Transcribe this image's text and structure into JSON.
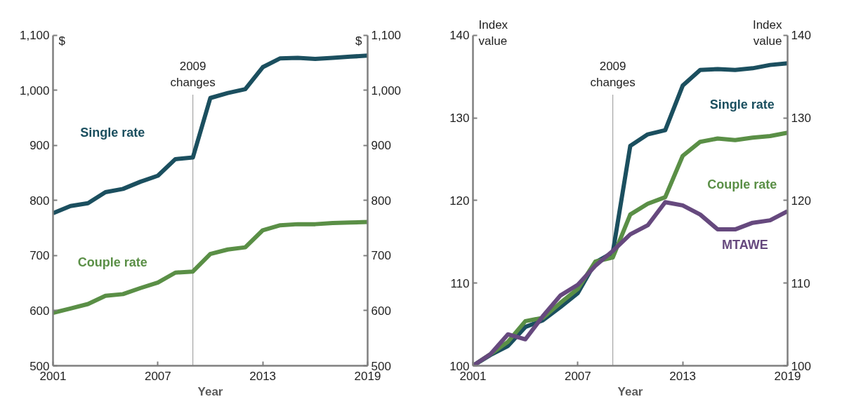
{
  "chart_data": [
    {
      "type": "line",
      "xlabel": "Year",
      "ylabel": "$",
      "y2label": "$",
      "x": [
        2001,
        2002,
        2003,
        2004,
        2005,
        2006,
        2007,
        2008,
        2009,
        2010,
        2011,
        2012,
        2013,
        2014,
        2015,
        2016,
        2017,
        2018,
        2019
      ],
      "series": [
        {
          "name": "Single rate",
          "color": "#1b4f5f",
          "values": [
            777,
            790,
            795,
            815,
            821,
            834,
            845,
            875,
            878,
            986,
            995,
            1002,
            1042,
            1058,
            1059,
            1057,
            1059,
            1061,
            1063
          ]
        },
        {
          "name": "Couple rate",
          "color": "#5a8f46",
          "values": [
            596,
            604,
            612,
            627,
            630,
            641,
            651,
            669,
            671,
            703,
            711,
            715,
            746,
            755,
            757,
            757,
            759,
            760,
            761
          ]
        }
      ],
      "xlim": [
        2001,
        2019
      ],
      "xticks": [
        2001,
        2007,
        2013,
        2019
      ],
      "ylim": [
        500,
        1100
      ],
      "yticks": [
        500,
        600,
        700,
        800,
        900,
        {
          "value": 1000,
          "label": "1,000"
        },
        {
          "value": 1100,
          "label": "1,100"
        }
      ],
      "y2lim": [
        500,
        1100
      ],
      "y2ticks": [
        500,
        600,
        700,
        800,
        900,
        {
          "value": 1000,
          "label": "1,000"
        },
        {
          "value": 1100,
          "label": "1,100"
        }
      ],
      "ref_lines": [
        {
          "axis": "x",
          "value": 2009,
          "label": "2009\nchanges",
          "color": "#a6a6a6"
        }
      ],
      "line_style": "solid"
    },
    {
      "type": "line",
      "xlabel": "Year",
      "ylabel": "Index\nvalue",
      "y2label": "Index\nvalue",
      "x": [
        2001,
        2002,
        2003,
        2004,
        2005,
        2006,
        2007,
        2008,
        2009,
        2010,
        2011,
        2012,
        2013,
        2014,
        2015,
        2016,
        2017,
        2018,
        2019
      ],
      "series": [
        {
          "name": "Single rate",
          "color": "#1b4f5f",
          "values": [
            100,
            101.3,
            102.4,
            104.7,
            105.5,
            107.1,
            108.8,
            112.5,
            113.7,
            126.6,
            128.0,
            128.5,
            133.9,
            135.8,
            135.9,
            135.8,
            136.0,
            136.4,
            136.6
          ]
        },
        {
          "name": "Couple rate",
          "color": "#5a8f46",
          "values": [
            100,
            101.4,
            102.9,
            105.4,
            105.8,
            107.6,
            109.3,
            112.6,
            113.1,
            118.3,
            119.6,
            120.4,
            125.4,
            127.1,
            127.5,
            127.3,
            127.6,
            127.8,
            128.2
          ]
        },
        {
          "name": "MTAWE",
          "color": "#66497e",
          "values": [
            100,
            101.4,
            103.8,
            103.2,
            106.0,
            108.5,
            109.8,
            112.1,
            113.9,
            115.9,
            117.0,
            119.8,
            119.4,
            118.3,
            116.5,
            116.5,
            117.3,
            117.6,
            118.7
          ]
        }
      ],
      "xlim": [
        2001,
        2019
      ],
      "xticks": [
        2001,
        2007,
        2013,
        2019
      ],
      "ylim": [
        100,
        140
      ],
      "yticks": [
        100,
        110,
        120,
        130,
        140
      ],
      "y2lim": [
        100,
        140
      ],
      "y2ticks": [
        100,
        110,
        120,
        130,
        140
      ],
      "ref_lines": [
        {
          "axis": "x",
          "value": 2009,
          "label": "2009\nchanges",
          "color": "#a6a6a6"
        }
      ],
      "line_style": "solid"
    }
  ]
}
